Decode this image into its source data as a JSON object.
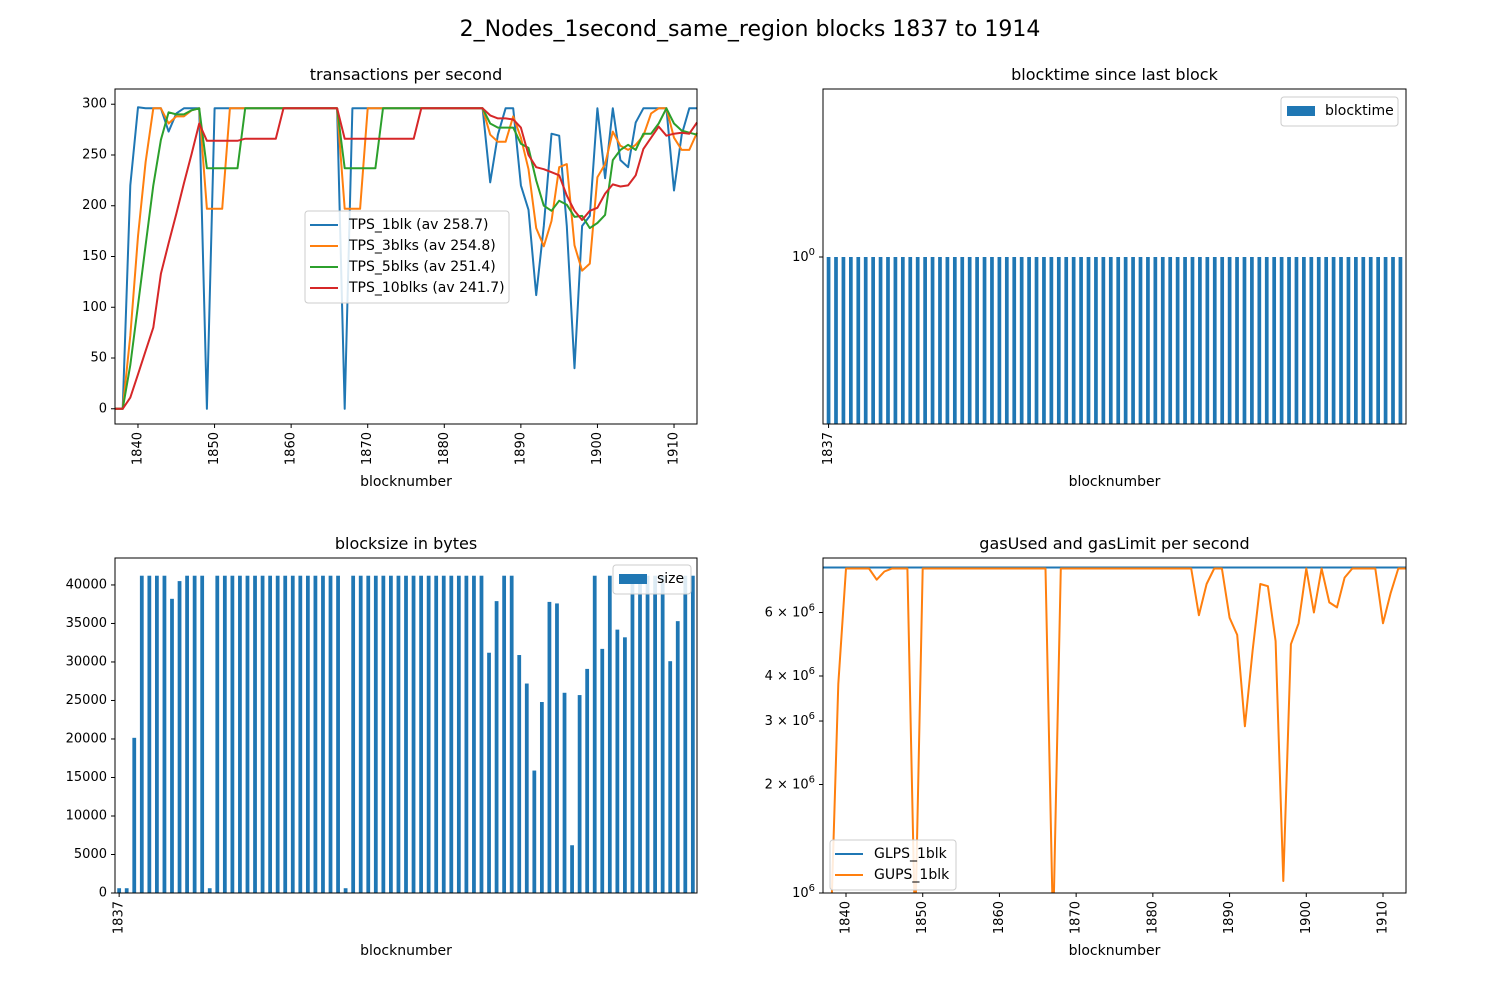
{
  "figure_title": "2_Nodes_1second_same_region blocks 1837 to 1914",
  "colors": {
    "c0": "#1f77b4",
    "c1": "#ff7f0e",
    "c2": "#2ca02c",
    "c3": "#d62728"
  },
  "chart_data": [
    {
      "id": "tps",
      "type": "line",
      "title": "transactions per second",
      "xlabel": "blocknumber",
      "ylabel": "",
      "xlim": [
        1837,
        1913
      ],
      "ylim": [
        -15,
        315
      ],
      "xticks": [
        1840,
        1850,
        1860,
        1870,
        1880,
        1890,
        1900,
        1910
      ],
      "yticks": [
        0,
        50,
        100,
        150,
        200,
        250,
        300
      ],
      "legend": "center",
      "x": [
        1837,
        1838,
        1839,
        1840,
        1841,
        1842,
        1843,
        1844,
        1845,
        1846,
        1847,
        1848,
        1849,
        1850,
        1851,
        1852,
        1853,
        1854,
        1855,
        1856,
        1857,
        1858,
        1859,
        1860,
        1861,
        1862,
        1863,
        1864,
        1865,
        1866,
        1867,
        1868,
        1869,
        1870,
        1871,
        1872,
        1873,
        1874,
        1875,
        1876,
        1877,
        1878,
        1879,
        1880,
        1881,
        1882,
        1883,
        1884,
        1885,
        1886,
        1887,
        1888,
        1889,
        1890,
        1891,
        1892,
        1893,
        1894,
        1895,
        1896,
        1897,
        1898,
        1899,
        1900,
        1901,
        1902,
        1903,
        1904,
        1905,
        1906,
        1907,
        1908,
        1909,
        1910,
        1911,
        1912,
        1913
      ],
      "series": [
        {
          "name": "TPS_1blk (av 258.7)",
          "color": "#1f77b4",
          "values": [
            0,
            0,
            220,
            297,
            296,
            296,
            296,
            273,
            291,
            296,
            296,
            296,
            0,
            296,
            296,
            296,
            296,
            296,
            296,
            296,
            296,
            296,
            296,
            296,
            296,
            296,
            296,
            296,
            296,
            296,
            0,
            296,
            296,
            296,
            296,
            296,
            296,
            296,
            296,
            296,
            296,
            296,
            296,
            296,
            296,
            296,
            296,
            296,
            296,
            223,
            270,
            296,
            296,
            220,
            196,
            112,
            180,
            271,
            269,
            180,
            40,
            180,
            190,
            296,
            227,
            296,
            245,
            238,
            282,
            296,
            296,
            296,
            296,
            215,
            270,
            296,
            296
          ]
        },
        {
          "name": "TPS_3blks (av 254.8)",
          "color": "#ff7f0e",
          "values": [
            0,
            0,
            72,
            170,
            243,
            296,
            296,
            281,
            288,
            288,
            294,
            296,
            197,
            197,
            197,
            296,
            296,
            296,
            296,
            296,
            296,
            296,
            296,
            296,
            296,
            296,
            296,
            296,
            296,
            296,
            197,
            197,
            197,
            296,
            296,
            296,
            296,
            296,
            296,
            296,
            296,
            296,
            296,
            296,
            296,
            296,
            296,
            296,
            296,
            270,
            263,
            263,
            288,
            267,
            236,
            178,
            160,
            185,
            238,
            241,
            161,
            136,
            143,
            228,
            241,
            273,
            259,
            255,
            260,
            269,
            291,
            296,
            296,
            267,
            255,
            255,
            272
          ]
        },
        {
          "name": "TPS_5blks (av 251.4)",
          "color": "#2ca02c",
          "values": [
            0,
            0,
            43,
            102,
            161,
            220,
            265,
            292,
            290,
            290,
            294,
            296,
            237,
            237,
            237,
            237,
            237,
            296,
            296,
            296,
            296,
            296,
            296,
            296,
            296,
            296,
            296,
            296,
            296,
            296,
            237,
            237,
            237,
            237,
            237,
            296,
            296,
            296,
            296,
            296,
            296,
            296,
            296,
            296,
            296,
            296,
            296,
            296,
            296,
            281,
            277,
            277,
            277,
            261,
            257,
            225,
            200,
            195,
            205,
            201,
            189,
            190,
            178,
            183,
            191,
            245,
            255,
            260,
            255,
            271,
            271,
            281,
            296,
            281,
            274,
            272,
            270
          ]
        },
        {
          "name": "TPS_10blks (av 241.7)",
          "color": "#d62728",
          "values": [
            0,
            0,
            11,
            34,
            57,
            80,
            133,
            163,
            192,
            222,
            251,
            281,
            264,
            264,
            264,
            264,
            264,
            266,
            266,
            266,
            266,
            266,
            296,
            296,
            296,
            296,
            296,
            296,
            296,
            296,
            266,
            266,
            266,
            266,
            266,
            266,
            266,
            266,
            266,
            266,
            296,
            296,
            296,
            296,
            296,
            296,
            296,
            296,
            296,
            289,
            286,
            286,
            285,
            277,
            250,
            238,
            236,
            233,
            230,
            210,
            195,
            186,
            195,
            198,
            212,
            221,
            219,
            220,
            230,
            256,
            267,
            278,
            269,
            271,
            272,
            271,
            282
          ]
        }
      ]
    },
    {
      "id": "blocktime",
      "type": "bar",
      "title": "blocktime since last block",
      "xlabel": "blocknumber",
      "xtick_label": "1837",
      "yscale": "log",
      "ytick_label_base": "10",
      "ytick_label_exp": "0",
      "legend": "top-right",
      "series": [
        {
          "name": "blocktime",
          "color": "#1f77b4",
          "count": 78,
          "value": 1
        }
      ]
    },
    {
      "id": "blocksize",
      "type": "bar",
      "title": "blocksize in bytes",
      "xlabel": "blocknumber",
      "xtick_label": "1837",
      "ylim": [
        0,
        43500
      ],
      "yticks": [
        0,
        5000,
        10000,
        15000,
        20000,
        25000,
        30000,
        35000,
        40000
      ],
      "legend": "top-right",
      "series": [
        {
          "name": "size",
          "color": "#1f77b4",
          "values": [
            620,
            620,
            20150,
            41200,
            41200,
            41200,
            41200,
            38200,
            40500,
            41200,
            41200,
            41200,
            620,
            41200,
            41200,
            41200,
            41200,
            41200,
            41200,
            41200,
            41200,
            41200,
            41200,
            41200,
            41200,
            41200,
            41200,
            41200,
            41200,
            41200,
            620,
            41200,
            41200,
            41200,
            41200,
            41200,
            41200,
            41200,
            41200,
            41200,
            41200,
            41200,
            41200,
            41200,
            41200,
            41200,
            41200,
            41200,
            41200,
            31200,
            37900,
            41200,
            41200,
            30900,
            27200,
            15900,
            24800,
            37800,
            37600,
            26000,
            6200,
            25700,
            29100,
            41200,
            31700,
            41200,
            34200,
            33200,
            41200,
            41200,
            41200,
            41200,
            41200,
            30100,
            35300,
            41200,
            41200
          ]
        }
      ]
    },
    {
      "id": "gas",
      "type": "line",
      "title": "gasUsed and gasLimit per second",
      "xlabel": "blocknumber",
      "yscale": "log",
      "xlim": [
        1837,
        1913
      ],
      "ylim": [
        1000000,
        8500000
      ],
      "xticks": [
        1840,
        1850,
        1860,
        1870,
        1880,
        1890,
        1900,
        1910
      ],
      "yticks": [
        {
          "value": 1000000,
          "mant": "",
          "exp": "6"
        },
        {
          "value": 2000000,
          "mant": "2",
          "exp": "6"
        },
        {
          "value": 3000000,
          "mant": "3",
          "exp": "6"
        },
        {
          "value": 4000000,
          "mant": "4",
          "exp": "6"
        },
        {
          "value": 6000000,
          "mant": "6",
          "exp": "6"
        }
      ],
      "legend": "bottom-left",
      "x": [
        1837,
        1838,
        1839,
        1840,
        1841,
        1842,
        1843,
        1844,
        1845,
        1846,
        1847,
        1848,
        1849,
        1850,
        1851,
        1852,
        1853,
        1854,
        1855,
        1856,
        1857,
        1858,
        1859,
        1860,
        1861,
        1862,
        1863,
        1864,
        1865,
        1866,
        1867,
        1868,
        1869,
        1870,
        1871,
        1872,
        1873,
        1874,
        1875,
        1876,
        1877,
        1878,
        1879,
        1880,
        1881,
        1882,
        1883,
        1884,
        1885,
        1886,
        1887,
        1888,
        1889,
        1890,
        1891,
        1892,
        1893,
        1894,
        1895,
        1896,
        1897,
        1898,
        1899,
        1900,
        1901,
        1902,
        1903,
        1904,
        1905,
        1906,
        1907,
        1908,
        1909,
        1910,
        1911,
        1912,
        1913
      ],
      "series": [
        {
          "name": "GLPS_1blk",
          "color": "#1f77b4",
          "constant": 8000000
        },
        {
          "name": "GUPS_1blk",
          "color": "#ff7f0e",
          "values": [
            null,
            null,
            3800000,
            7950000,
            7950000,
            7950000,
            7950000,
            7400000,
            7800000,
            7950000,
            7950000,
            7950000,
            null,
            7950000,
            7950000,
            7950000,
            7950000,
            7950000,
            7950000,
            7950000,
            7950000,
            7950000,
            7950000,
            7950000,
            7950000,
            7950000,
            7950000,
            7950000,
            7950000,
            7950000,
            null,
            7950000,
            7950000,
            7950000,
            7950000,
            7950000,
            7950000,
            7950000,
            7950000,
            7950000,
            7950000,
            7950000,
            7950000,
            7950000,
            7950000,
            7950000,
            7950000,
            7950000,
            7950000,
            5900000,
            7200000,
            7950000,
            7950000,
            5800000,
            5200000,
            2900000,
            4700000,
            7200000,
            7100000,
            5000000,
            1080000,
            4900000,
            5600000,
            7950000,
            6000000,
            7950000,
            6400000,
            6200000,
            7500000,
            7950000,
            7950000,
            7950000,
            7950000,
            5600000,
            6800000,
            7950000,
            7950000
          ]
        }
      ]
    }
  ]
}
